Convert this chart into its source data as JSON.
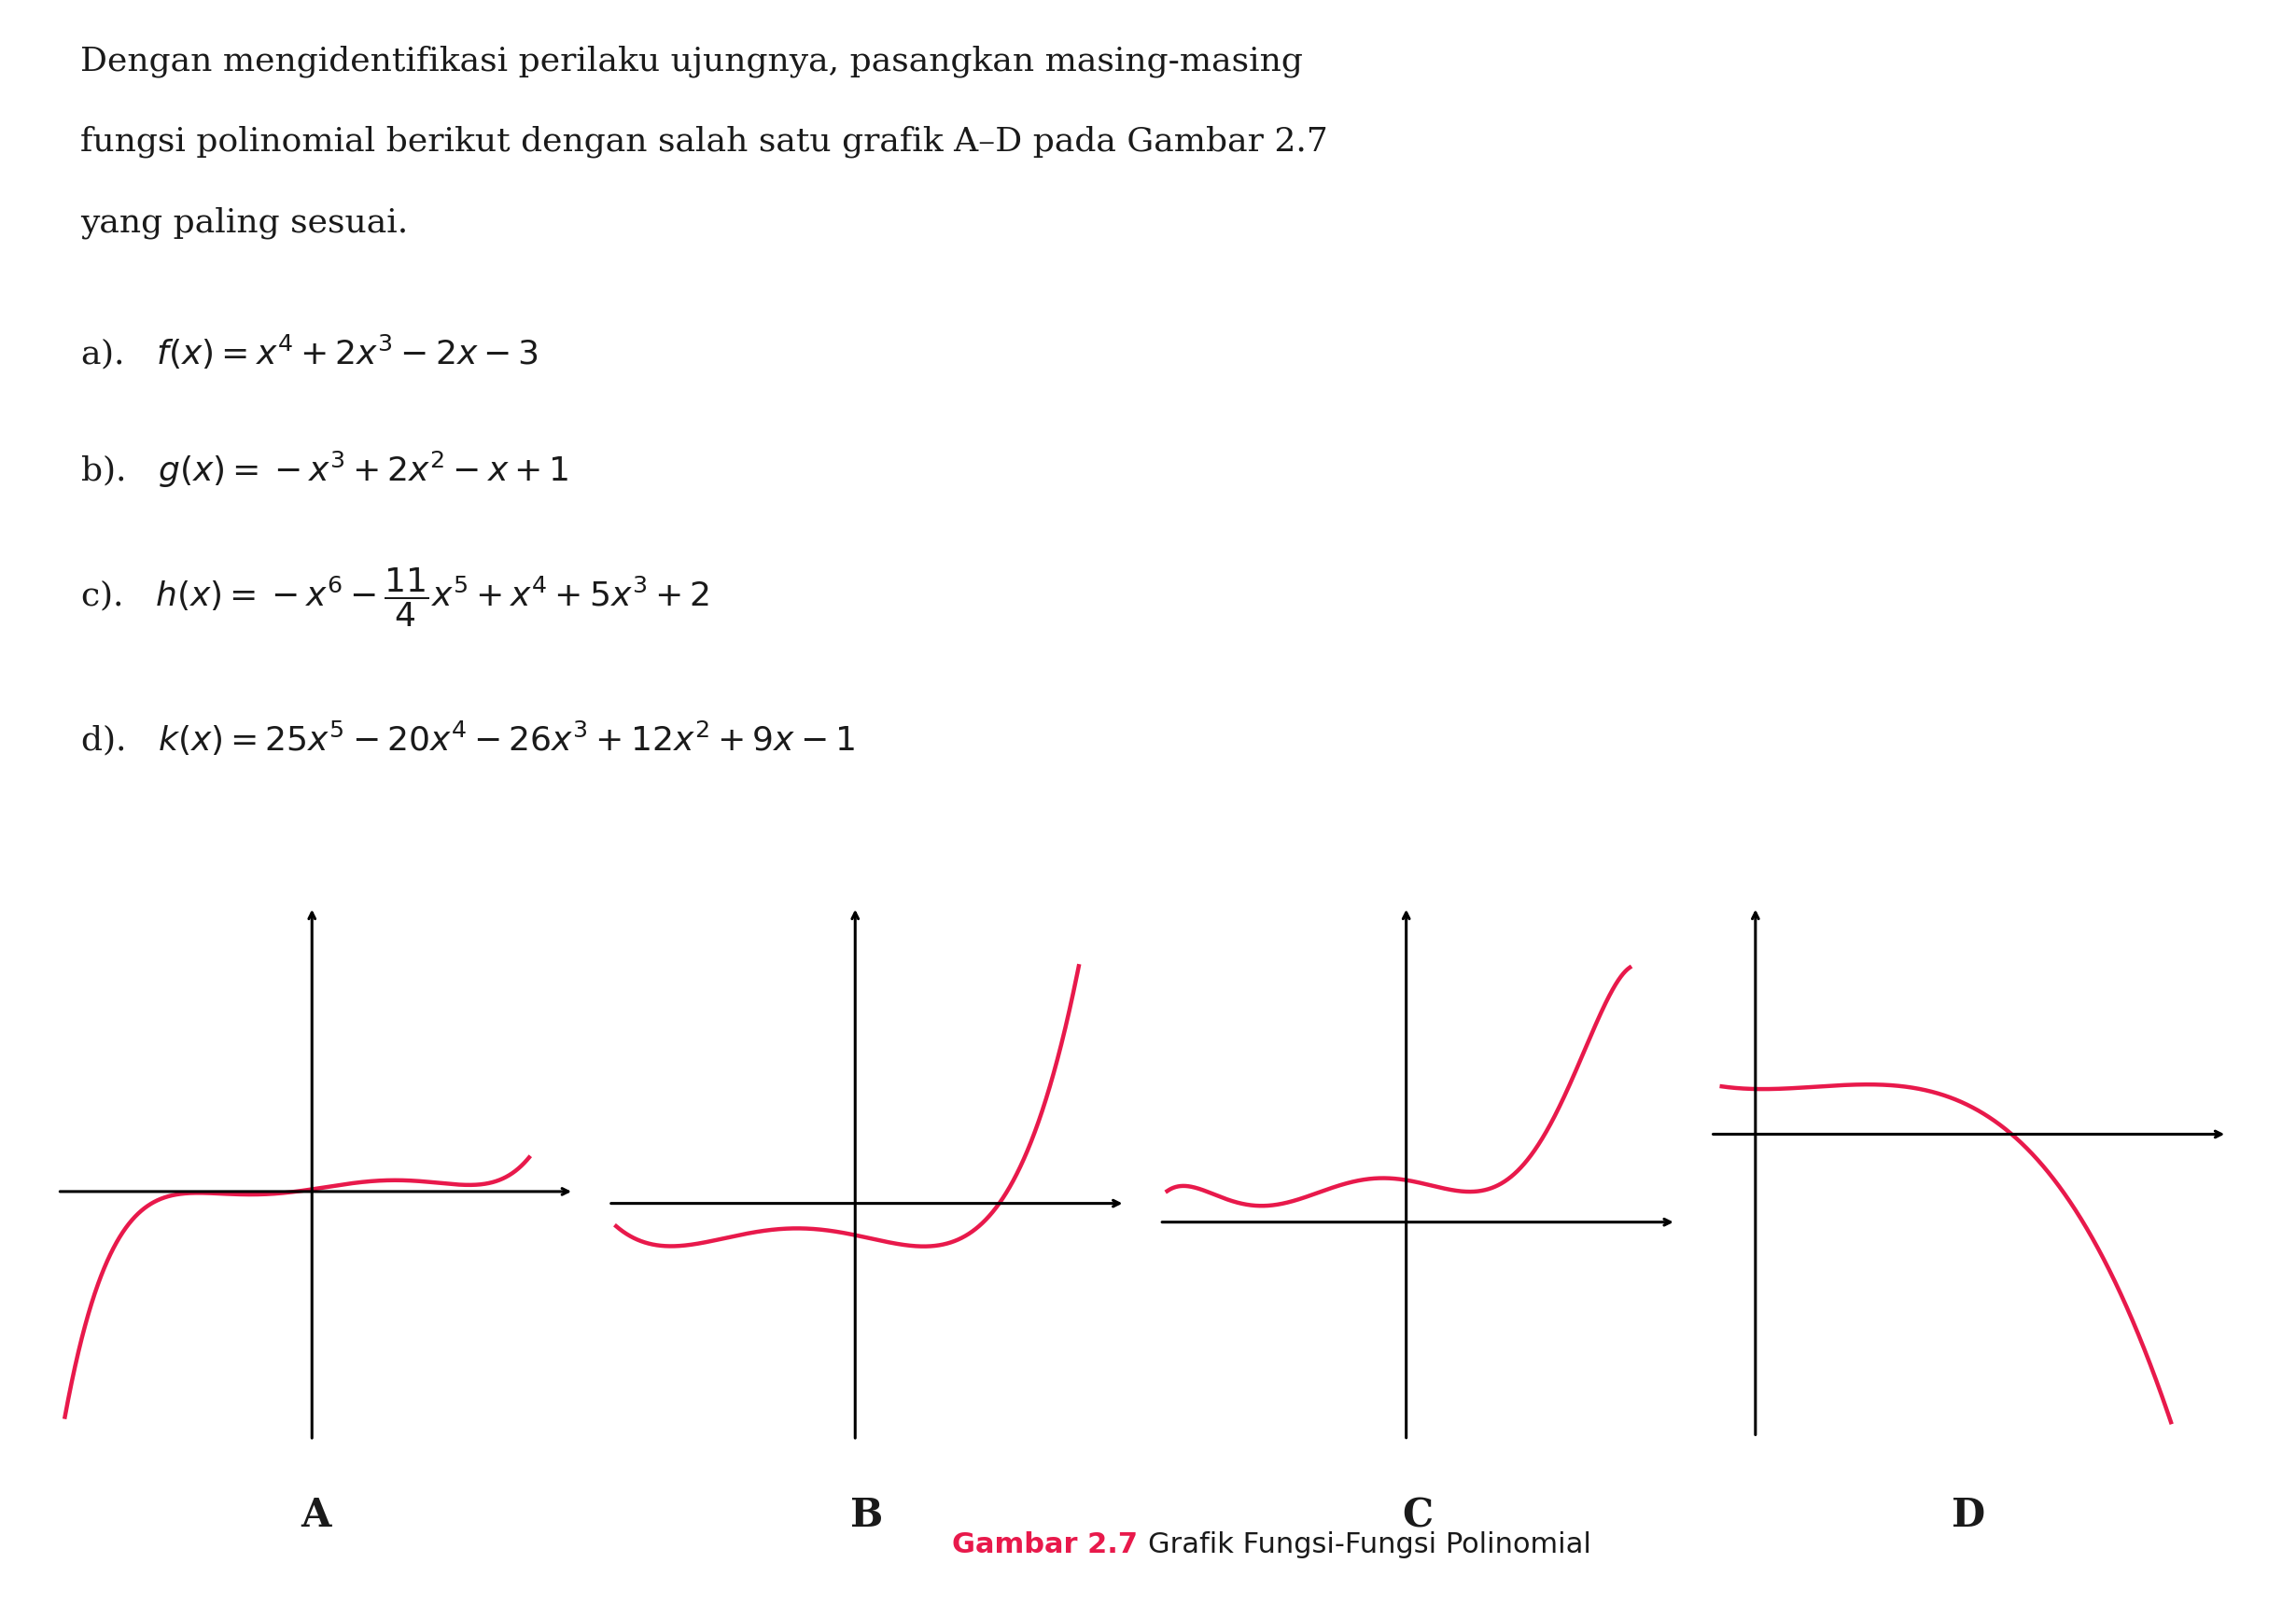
{
  "curve_color": "#E8194B",
  "text_color": "#1a1a1a",
  "caption_color": "#E8194B",
  "background_color": "#ffffff",
  "graph_labels": [
    "A",
    "B",
    "C",
    "D"
  ],
  "caption_magenta": "Gambar 2.7 ",
  "caption_black": "Grafik Fungsi-Fungsi Polinomial",
  "title_lines": [
    "Dengan mengidentifikasi perilaku ujungnya, pasangkan masing-masing",
    "fungsi polinomial berikut dengan salah satu grafik A–D pada Gambar 2.7",
    "yang paling sesuai."
  ],
  "formula_a": "a).\\quad f(x)=x^{4}+2x^{3}-2x-3",
  "formula_b": "b).\\quad g(x)=-x^{3}+2x^{2}-x+1",
  "formula_c_left": "c).\\quad h(x)=-x^{6}-",
  "formula_c_frac": "\\dfrac{11}{4}",
  "formula_c_right": "x^{5}+x^{4}+5x^{3}+2",
  "formula_d": "d).\\quad k(x)=25x^{5}-20x^{4}-26x^{3}+12x^{2}+9x-1"
}
